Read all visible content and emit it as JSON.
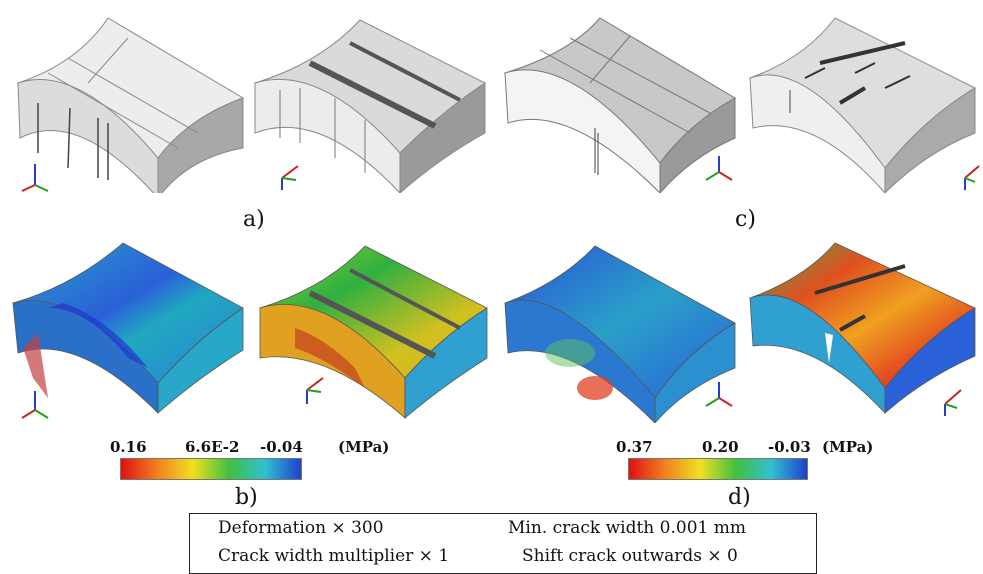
{
  "panels": [
    {
      "label": "a)"
    },
    {
      "label": "b)"
    },
    {
      "label": "c)"
    },
    {
      "label": "d)"
    }
  ],
  "colorbar_b": {
    "max": "0.16",
    "mid": "6.6E-2",
    "min": "-0.04",
    "unit": "(MPa)"
  },
  "colorbar_d": {
    "max": "0.37",
    "mid": "0.20",
    "min": "-0.03",
    "unit": "(MPa)"
  },
  "legend": {
    "deformation": "Deformation × 300",
    "min_crack_width": "Min. crack width 0.001 mm",
    "crack_width_multiplier": "Crack width multiplier × 1",
    "shift_crack": "Shift crack outwards × 0"
  },
  "colors": {
    "scale_high": "#e01010",
    "scale_mid_high": "#f0d020",
    "scale_mid": "#40c040",
    "scale_mid_low": "#30c0c0",
    "scale_low": "#2040d0",
    "mesh_light": "#e8e8e8",
    "mesh_mid": "#c8c8c8",
    "mesh_dark": "#6a6a6a"
  }
}
